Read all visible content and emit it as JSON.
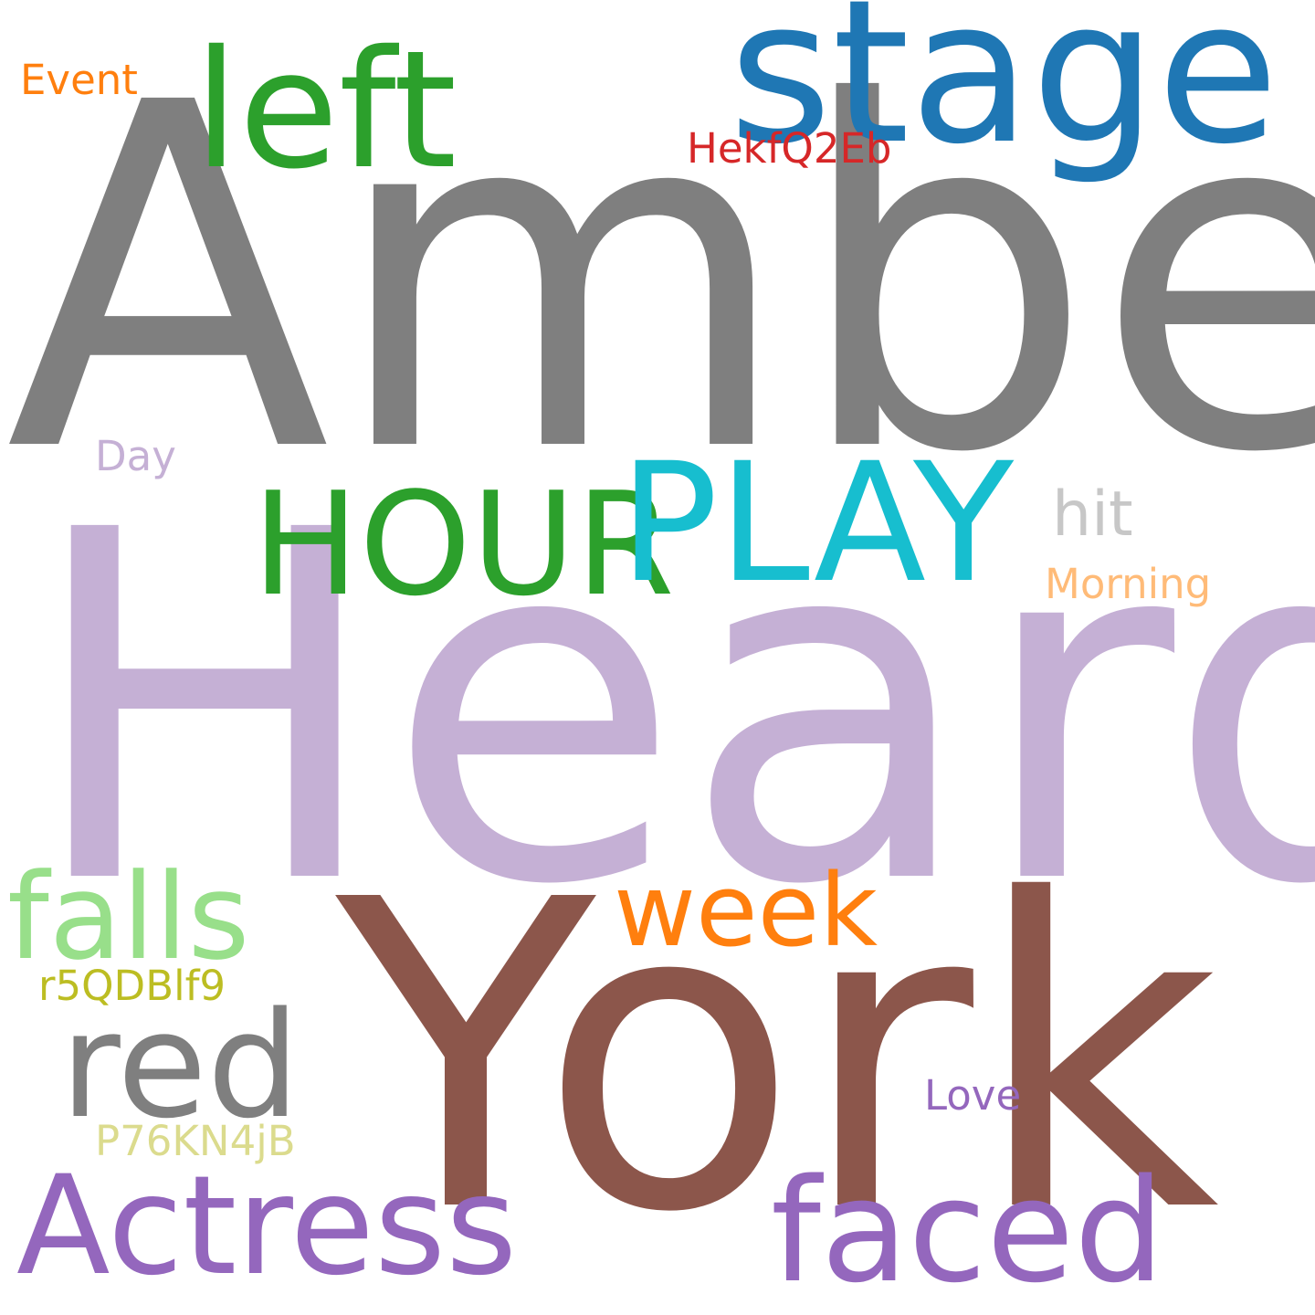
{
  "words": [
    {
      "text": "Amber",
      "color": "#7f7f7f"
    },
    {
      "text": "Heard",
      "color": "#c5b0d5"
    },
    {
      "text": "York",
      "color": "#8c564b"
    },
    {
      "text": "stage",
      "color": "#1f77b4"
    },
    {
      "text": "left",
      "color": "#2ca02c"
    },
    {
      "text": "Event",
      "color": "#ff7f0e"
    },
    {
      "text": "HekfQ2Eb",
      "color": "#d62728"
    },
    {
      "text": "Day",
      "color": "#c5b0d5"
    },
    {
      "text": "HOUR",
      "color": "#2ca02c"
    },
    {
      "text": "PLAY",
      "color": "#17becf"
    },
    {
      "text": "hit",
      "color": "#c7c7c7"
    },
    {
      "text": "Morning",
      "color": "#ffbb78"
    },
    {
      "text": "falls",
      "color": "#98df8a"
    },
    {
      "text": "week",
      "color": "#ff7f0e"
    },
    {
      "text": "r5QDBlf9",
      "color": "#bcbd22"
    },
    {
      "text": "red",
      "color": "#7f7f7f"
    },
    {
      "text": "Love",
      "color": "#9467bd"
    },
    {
      "text": "P76KN4jB",
      "color": "#dbdb8d"
    },
    {
      "text": "Actress",
      "color": "#9467bd"
    },
    {
      "text": "faced",
      "color": "#9467bd"
    }
  ]
}
